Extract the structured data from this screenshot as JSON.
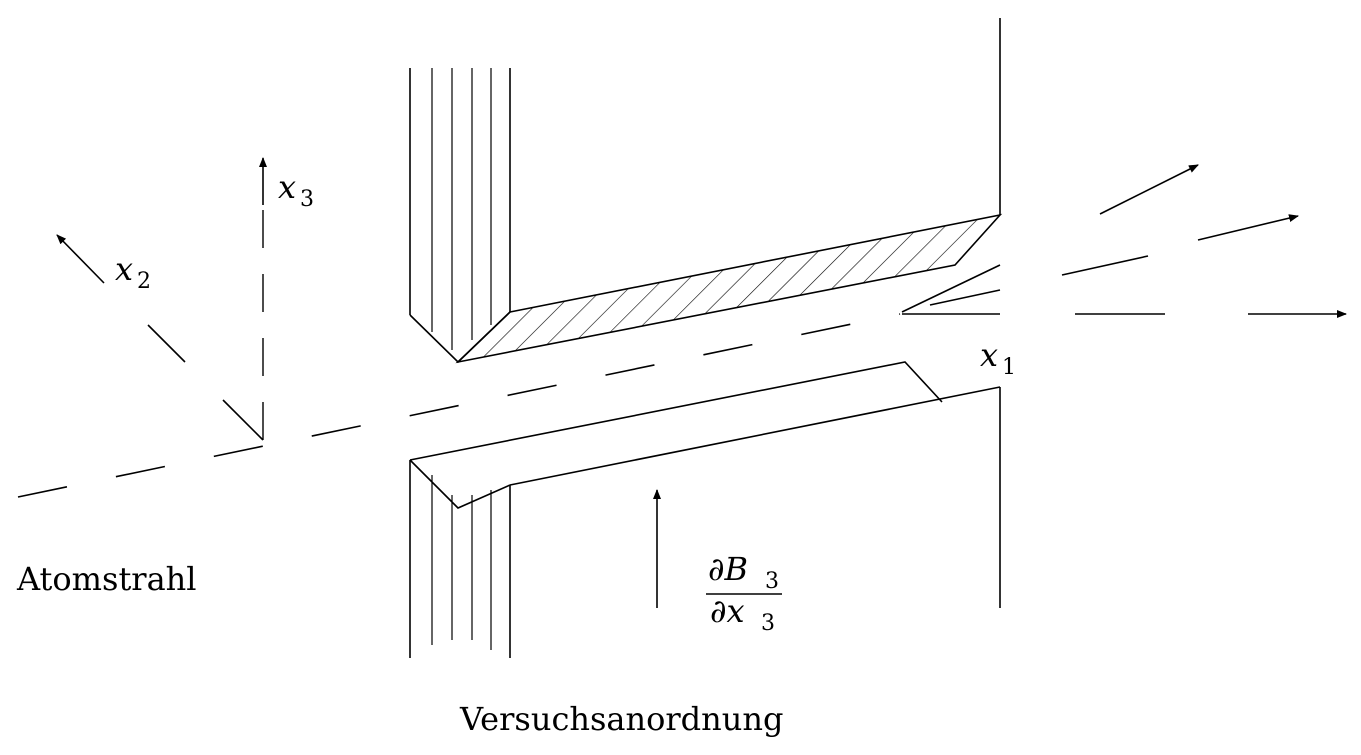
{
  "labels": {
    "x1": "x",
    "x1_sub": "1",
    "x2": "x",
    "x2_sub": "2",
    "x3": "x",
    "x3_sub": "3",
    "beam": "Atomstrahl",
    "setup": "Versuchsanordnung",
    "gradient_num": "∂B",
    "gradient_num_sub": "3",
    "gradient_den": "∂x",
    "gradient_den_sub": "3"
  },
  "colors": {
    "line": "#000000",
    "background": "#ffffff"
  }
}
